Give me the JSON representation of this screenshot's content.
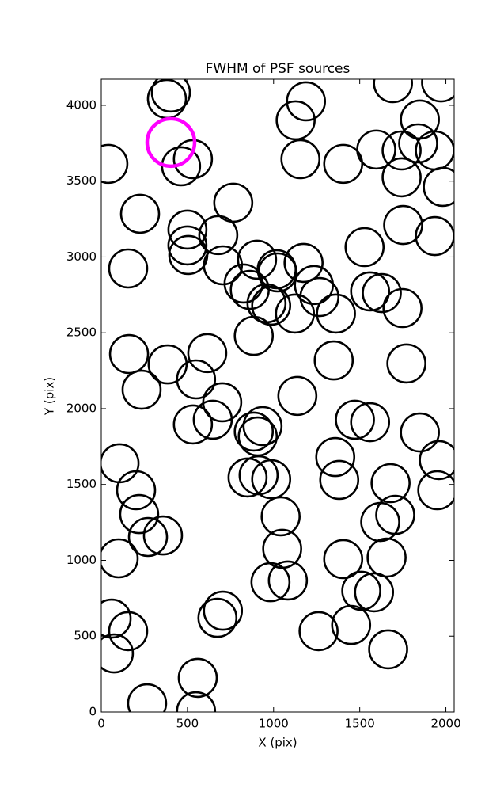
{
  "chart_data": {
    "type": "scatter",
    "title": "FWHM of PSF sources",
    "x_label": "X (pix)",
    "y_label": "Y (pix)",
    "xlim": [
      0,
      2048
    ],
    "ylim": [
      0,
      4172
    ],
    "xticks": [
      0,
      500,
      1000,
      1500,
      2000
    ],
    "yticks": [
      0,
      500,
      1000,
      1500,
      2000,
      2500,
      3000,
      3500,
      4000
    ],
    "grid": false,
    "series": [
      {
        "color": "#000000",
        "x": [
          41,
          381,
          404,
          463,
          532,
          225,
          500,
          500,
          505,
          156,
          766,
          679,
          706,
          904,
          1018,
          1023,
          826,
          862,
          959,
          986,
          1174,
          1234,
          1266,
          1124,
          1362,
          885,
          161,
          615,
          385,
          550,
          234,
          702,
          1138,
          1349,
          532,
          647,
          936,
          885,
          908,
          106,
          202,
          220,
          271,
          358,
          101,
          849,
          913,
          986,
          1041,
          1050,
          982,
          1083,
          706,
          674,
          60,
          156,
          73,
          560,
          550,
          266,
          1404,
          1596,
          1743,
          1743,
          1839,
          1849,
          1936,
          1982,
          1693,
          1972,
          1188,
          1128,
          1156,
          1752,
          1936,
          1528,
          1560,
          1628,
          1748,
          1771,
          1472,
          1560,
          1849,
          1959,
          1358,
          1381,
          1679,
          1619,
          1706,
          1656,
          1404,
          1509,
          1583,
          1450,
          1261,
          1665,
          1950
        ],
        "values": [
          3614,
          4042,
          4084,
          3598,
          3645,
          3285,
          3180,
          3076,
          3013,
          2924,
          3358,
          3144,
          2945,
          2982,
          2919,
          2898,
          2825,
          2783,
          2695,
          2679,
          2961,
          2815,
          2736,
          2627,
          2627,
          2480,
          2360,
          2366,
          2292,
          2193,
          2125,
          2042,
          2084,
          2318,
          1896,
          1927,
          1885,
          1849,
          1817,
          1640,
          1462,
          1305,
          1154,
          1164,
          1013,
          1546,
          1561,
          1535,
          1290,
          1076,
          856,
          867,
          668,
          621,
          616,
          533,
          386,
          225,
          5,
          57,
          3614,
          3708,
          3702,
          3525,
          3749,
          3906,
          3702,
          3462,
          4146,
          4151,
          4026,
          3901,
          3645,
          3211,
          3138,
          3065,
          2773,
          2762,
          2663,
          2298,
          1927,
          1911,
          1843,
          1661,
          1681,
          1530,
          1509,
          1253,
          1300,
          1018,
          1008,
          799,
          789,
          574,
          533,
          413,
          1462
        ]
      },
      {
        "color": "#ff00ff",
        "x": [
          404
        ],
        "values": [
          3755
        ]
      }
    ]
  }
}
